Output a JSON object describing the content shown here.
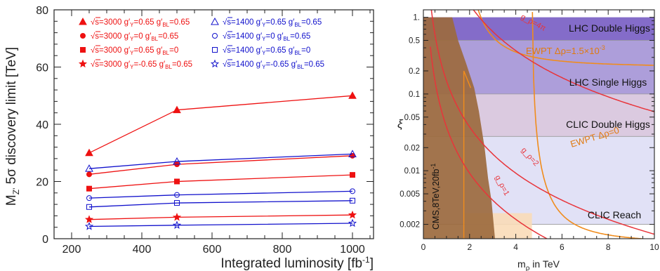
{
  "chart_data": [
    {
      "type": "line",
      "xlabel": "Integrated luminosity [fb",
      "xlabel_sup": "-1",
      "xlabel_end": "]",
      "ylabel": "M",
      "ylabel_sub": "Z'",
      "ylabel_rest": " 5σ discovery limit [TeV]",
      "xlim": [
        150,
        1060
      ],
      "ylim": [
        0,
        80
      ],
      "x_ticks": [
        200,
        400,
        600,
        800,
        1000
      ],
      "y_ticks": [
        0,
        20,
        40,
        60,
        80
      ],
      "x": [
        250,
        500,
        1000
      ],
      "colors": {
        "red": "#ee1111",
        "blue": "#1111cc"
      },
      "legend": [
        {
          "s": "3000",
          "gy": "0.65",
          "gbl": "0.65",
          "marker": "triangle-filled",
          "color": "red"
        },
        {
          "s": "3000",
          "gy": "0",
          "gbl": "0.65",
          "marker": "circle-filled",
          "color": "red"
        },
        {
          "s": "3000",
          "gy": "0.65",
          "gbl": "0",
          "marker": "square-filled",
          "color": "red"
        },
        {
          "s": "3000",
          "gy": "-0.65",
          "gbl": "0.65",
          "marker": "star-filled",
          "color": "red"
        },
        {
          "s": "1400",
          "gy": "0.65",
          "gbl": "0.65",
          "marker": "triangle-open",
          "color": "blue"
        },
        {
          "s": "1400",
          "gy": "0",
          "gbl": "0.65",
          "marker": "circle-open",
          "color": "blue"
        },
        {
          "s": "1400",
          "gy": "0.65",
          "gbl": "0",
          "marker": "square-open",
          "color": "blue"
        },
        {
          "s": "1400",
          "gy": "-0.65",
          "gbl": "0.65",
          "marker": "star-open",
          "color": "blue"
        }
      ],
      "series": [
        {
          "values": [
            30,
            45,
            50
          ],
          "marker": "triangle-filled",
          "color": "red"
        },
        {
          "values": [
            22.5,
            26,
            29
          ],
          "marker": "circle-filled",
          "color": "red"
        },
        {
          "values": [
            17.5,
            20,
            22.3
          ],
          "marker": "square-filled",
          "color": "red"
        },
        {
          "values": [
            6.7,
            7.5,
            8.3
          ],
          "marker": "star-filled",
          "color": "red"
        },
        {
          "values": [
            24.5,
            27,
            29.6
          ],
          "marker": "triangle-open",
          "color": "blue"
        },
        {
          "values": [
            14.2,
            15.3,
            16.6
          ],
          "marker": "circle-open",
          "color": "blue"
        },
        {
          "values": [
            11.1,
            12.5,
            13.3
          ],
          "marker": "square-open",
          "color": "blue"
        },
        {
          "values": [
            4.3,
            4.7,
            5.4
          ],
          "marker": "star-open",
          "color": "blue"
        }
      ]
    },
    {
      "type": "area",
      "xlabel": "m",
      "xlabel_sub": "ρ",
      "xlabel_rest": " in TeV",
      "ylabel": "ξ",
      "xlim": [
        0,
        10
      ],
      "ylim": [
        0.0013,
        1.25
      ],
      "y_scale": "log",
      "x_ticks": [
        0,
        2,
        4,
        6,
        8,
        10
      ],
      "y_ticks": [
        {
          "v": 1,
          "label": "1."
        },
        {
          "v": 0.5,
          "label": "0.5"
        },
        {
          "v": 0.2,
          "label": "0.2"
        },
        {
          "v": 0.1,
          "label": "0.1"
        },
        {
          "v": 0.05,
          "label": "0.05"
        },
        {
          "v": 0.02,
          "label": "0.02"
        },
        {
          "v": 0.01,
          "label": "0.01"
        },
        {
          "v": 0.005,
          "label": "0.005"
        },
        {
          "v": 0.002,
          "label": "0.002"
        }
      ],
      "bands": [
        {
          "label": "LHC Double Higgs",
          "xi": 0.5,
          "color": "#7c63c6"
        },
        {
          "label": "LHC Single Higgs",
          "xi": 0.1,
          "color": "#a596d8"
        },
        {
          "label": "CLIC Double Higgs",
          "xi": 0.028,
          "color": "#d9c6dc"
        },
        {
          "label": "CLIC Reach",
          "xi": 0.002,
          "color": "#dcdcf4"
        }
      ],
      "cms_label": "CMS,8TeV,20fb",
      "cms_sup": "-1",
      "cms_excluded_color": "#9c6a3e",
      "cms_boundary": [
        [
          0.0,
          0.0013
        ],
        [
          0.0,
          1.0
        ],
        [
          1.25,
          1.0
        ],
        [
          1.5,
          0.5
        ],
        [
          1.85,
          0.25
        ],
        [
          2.2,
          0.12
        ],
        [
          2.4,
          0.06
        ],
        [
          2.65,
          0.02
        ],
        [
          2.8,
          0.008
        ],
        [
          2.95,
          0.004
        ],
        [
          3.1,
          0.0013
        ]
      ],
      "g_curves": [
        {
          "label": "g_ρ=1",
          "g": 1
        },
        {
          "label": "g_ρ=2",
          "g": 2
        },
        {
          "label": "g_ρ=4π",
          "g": 12.57
        }
      ],
      "ewpt_curves": [
        {
          "label": "EWPT Δρ=0",
          "asymptote": 4.7,
          "xi_far": 0.0011
        },
        {
          "label": "EWPT Δρ=1.5×10",
          "label_sup": "-3",
          "asymptote": 1.75,
          "xi_far": 0.22
        }
      ]
    }
  ]
}
